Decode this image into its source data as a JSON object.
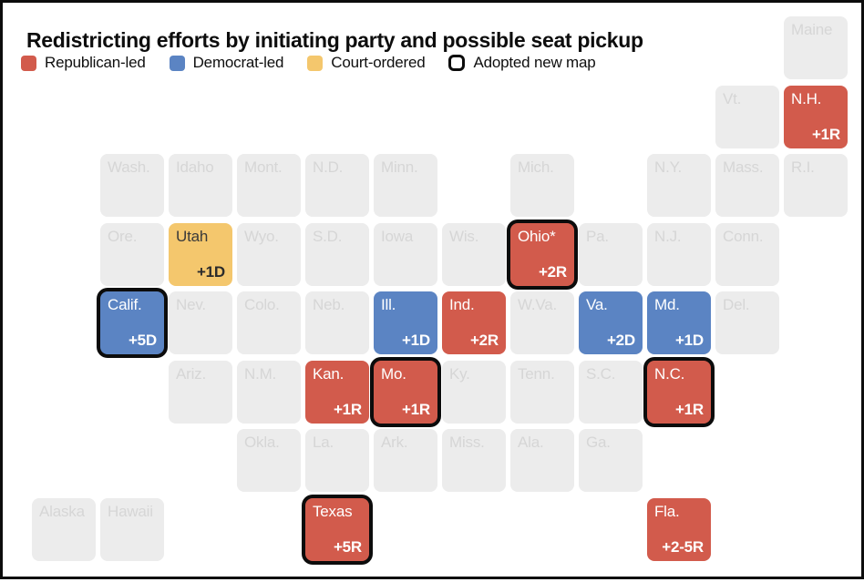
{
  "title": "Redistricting efforts by initiating party and possible seat pickup",
  "legend": [
    {
      "label": "Republican-led",
      "swatch": "fill",
      "color": "#d25b4c"
    },
    {
      "label": "Democrat-led",
      "swatch": "fill",
      "color": "#5b84c3"
    },
    {
      "label": "Court-ordered",
      "swatch": "fill",
      "color": "#f4c76d"
    },
    {
      "label": "Adopted new map",
      "swatch": "outline",
      "color": "#0c0c0c"
    }
  ],
  "colors": {
    "republican": "#d25b4c",
    "democrat": "#5b84c3",
    "court_ordered": "#f4c76d",
    "inactive_tile": "#ececec",
    "inactive_label": "#d6d6d6",
    "adopted_border": "#0c0c0c",
    "tile_text_light": "#ffffff",
    "tile_text_dark": "#3a3a3a",
    "frame_border": "#0c0c0c",
    "background": "#ffffff"
  },
  "chart_data": {
    "type": "tile_grid_cartogram",
    "title": "Redistricting efforts by initiating party and possible seat pickup",
    "legend_entries": [
      "Republican-led",
      "Democrat-led",
      "Court-ordered",
      "Adopted new map"
    ],
    "grid": {
      "columns": 12,
      "rows": 8
    },
    "states": [
      {
        "label": "Maine",
        "row": 0,
        "col": 11,
        "party": null,
        "pickup": null,
        "adopted": false
      },
      {
        "label": "Vt.",
        "row": 1,
        "col": 10,
        "party": null,
        "pickup": null,
        "adopted": false
      },
      {
        "label": "N.H.",
        "row": 1,
        "col": 11,
        "party": "republican",
        "pickup": "+1R",
        "adopted": false
      },
      {
        "label": "Wash.",
        "row": 2,
        "col": 1,
        "party": null,
        "pickup": null,
        "adopted": false
      },
      {
        "label": "Idaho",
        "row": 2,
        "col": 2,
        "party": null,
        "pickup": null,
        "adopted": false
      },
      {
        "label": "Mont.",
        "row": 2,
        "col": 3,
        "party": null,
        "pickup": null,
        "adopted": false
      },
      {
        "label": "N.D.",
        "row": 2,
        "col": 4,
        "party": null,
        "pickup": null,
        "adopted": false
      },
      {
        "label": "Minn.",
        "row": 2,
        "col": 5,
        "party": null,
        "pickup": null,
        "adopted": false
      },
      {
        "label": "Mich.",
        "row": 2,
        "col": 7,
        "party": null,
        "pickup": null,
        "adopted": false
      },
      {
        "label": "N.Y.",
        "row": 2,
        "col": 9,
        "party": null,
        "pickup": null,
        "adopted": false
      },
      {
        "label": "Mass.",
        "row": 2,
        "col": 10,
        "party": null,
        "pickup": null,
        "adopted": false
      },
      {
        "label": "R.I.",
        "row": 2,
        "col": 11,
        "party": null,
        "pickup": null,
        "adopted": false
      },
      {
        "label": "Ore.",
        "row": 3,
        "col": 1,
        "party": null,
        "pickup": null,
        "adopted": false
      },
      {
        "label": "Utah",
        "row": 3,
        "col": 2,
        "party": "court",
        "pickup": "+1D",
        "adopted": false
      },
      {
        "label": "Wyo.",
        "row": 3,
        "col": 3,
        "party": null,
        "pickup": null,
        "adopted": false
      },
      {
        "label": "S.D.",
        "row": 3,
        "col": 4,
        "party": null,
        "pickup": null,
        "adopted": false
      },
      {
        "label": "Iowa",
        "row": 3,
        "col": 5,
        "party": null,
        "pickup": null,
        "adopted": false
      },
      {
        "label": "Wis.",
        "row": 3,
        "col": 6,
        "party": null,
        "pickup": null,
        "adopted": false
      },
      {
        "label": "Ohio*",
        "row": 3,
        "col": 7,
        "party": "republican",
        "pickup": "+2R",
        "adopted": true
      },
      {
        "label": "Pa.",
        "row": 3,
        "col": 8,
        "party": null,
        "pickup": null,
        "adopted": false
      },
      {
        "label": "N.J.",
        "row": 3,
        "col": 9,
        "party": null,
        "pickup": null,
        "adopted": false
      },
      {
        "label": "Conn.",
        "row": 3,
        "col": 10,
        "party": null,
        "pickup": null,
        "adopted": false
      },
      {
        "label": "Calif.",
        "row": 4,
        "col": 1,
        "party": "democrat",
        "pickup": "+5D",
        "adopted": true
      },
      {
        "label": "Nev.",
        "row": 4,
        "col": 2,
        "party": null,
        "pickup": null,
        "adopted": false
      },
      {
        "label": "Colo.",
        "row": 4,
        "col": 3,
        "party": null,
        "pickup": null,
        "adopted": false
      },
      {
        "label": "Neb.",
        "row": 4,
        "col": 4,
        "party": null,
        "pickup": null,
        "adopted": false
      },
      {
        "label": "Ill.",
        "row": 4,
        "col": 5,
        "party": "democrat",
        "pickup": "+1D",
        "adopted": false
      },
      {
        "label": "Ind.",
        "row": 4,
        "col": 6,
        "party": "republican",
        "pickup": "+2R",
        "adopted": false
      },
      {
        "label": "W.Va.",
        "row": 4,
        "col": 7,
        "party": null,
        "pickup": null,
        "adopted": false
      },
      {
        "label": "Va.",
        "row": 4,
        "col": 8,
        "party": "democrat",
        "pickup": "+2D",
        "adopted": false
      },
      {
        "label": "Md.",
        "row": 4,
        "col": 9,
        "party": "democrat",
        "pickup": "+1D",
        "adopted": false
      },
      {
        "label": "Del.",
        "row": 4,
        "col": 10,
        "party": null,
        "pickup": null,
        "adopted": false
      },
      {
        "label": "Ariz.",
        "row": 5,
        "col": 2,
        "party": null,
        "pickup": null,
        "adopted": false
      },
      {
        "label": "N.M.",
        "row": 5,
        "col": 3,
        "party": null,
        "pickup": null,
        "adopted": false
      },
      {
        "label": "Kan.",
        "row": 5,
        "col": 4,
        "party": "republican",
        "pickup": "+1R",
        "adopted": false
      },
      {
        "label": "Mo.",
        "row": 5,
        "col": 5,
        "party": "republican",
        "pickup": "+1R",
        "adopted": true
      },
      {
        "label": "Ky.",
        "row": 5,
        "col": 6,
        "party": null,
        "pickup": null,
        "adopted": false
      },
      {
        "label": "Tenn.",
        "row": 5,
        "col": 7,
        "party": null,
        "pickup": null,
        "adopted": false
      },
      {
        "label": "S.C.",
        "row": 5,
        "col": 8,
        "party": null,
        "pickup": null,
        "adopted": false
      },
      {
        "label": "N.C.",
        "row": 5,
        "col": 9,
        "party": "republican",
        "pickup": "+1R",
        "adopted": true
      },
      {
        "label": "Okla.",
        "row": 6,
        "col": 3,
        "party": null,
        "pickup": null,
        "adopted": false
      },
      {
        "label": "La.",
        "row": 6,
        "col": 4,
        "party": null,
        "pickup": null,
        "adopted": false
      },
      {
        "label": "Ark.",
        "row": 6,
        "col": 5,
        "party": null,
        "pickup": null,
        "adopted": false
      },
      {
        "label": "Miss.",
        "row": 6,
        "col": 6,
        "party": null,
        "pickup": null,
        "adopted": false
      },
      {
        "label": "Ala.",
        "row": 6,
        "col": 7,
        "party": null,
        "pickup": null,
        "adopted": false
      },
      {
        "label": "Ga.",
        "row": 6,
        "col": 8,
        "party": null,
        "pickup": null,
        "adopted": false
      },
      {
        "label": "Alaska",
        "row": 7,
        "col": 0,
        "party": null,
        "pickup": null,
        "adopted": false
      },
      {
        "label": "Hawaii",
        "row": 7,
        "col": 1,
        "party": null,
        "pickup": null,
        "adopted": false
      },
      {
        "label": "Texas",
        "row": 7,
        "col": 4,
        "party": "republican",
        "pickup": "+5R",
        "adopted": true
      },
      {
        "label": "Fla.",
        "row": 7,
        "col": 9,
        "party": "republican",
        "pickup": "+2-5R",
        "adopted": false
      }
    ]
  }
}
